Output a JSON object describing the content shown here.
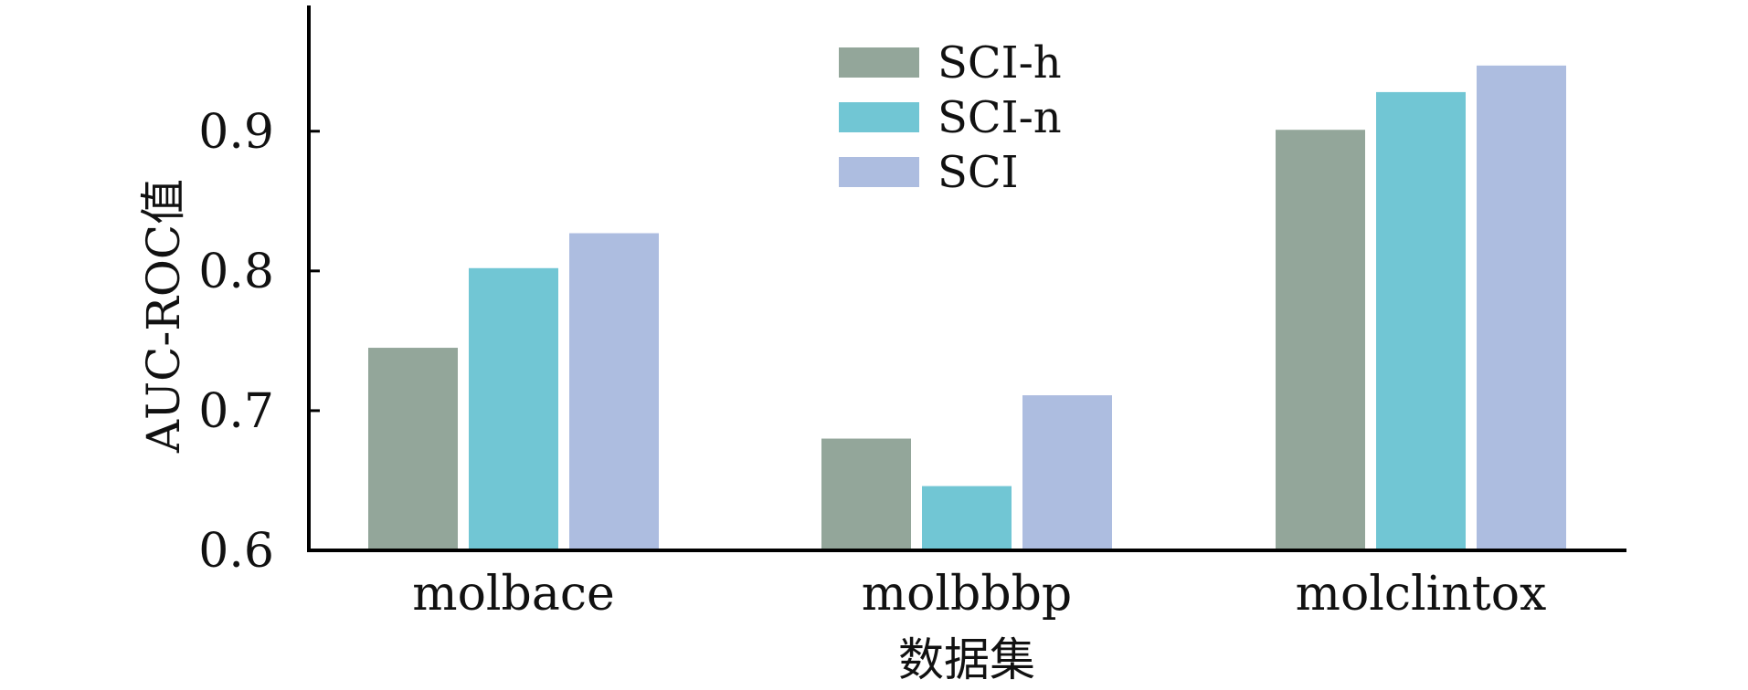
{
  "chart_data": {
    "type": "bar",
    "categories": [
      "molbace",
      "molbbbp",
      "molclintox"
    ],
    "series": [
      {
        "name": "SCI-h",
        "values": [
          0.745,
          0.68,
          0.901
        ],
        "color": "#93a69a"
      },
      {
        "name": "SCI-n",
        "values": [
          0.802,
          0.646,
          0.928
        ],
        "color": "#71c6d4"
      },
      {
        "name": "SCI",
        "values": [
          0.827,
          0.711,
          0.947
        ],
        "color": "#adbde0"
      }
    ],
    "title": "",
    "xlabel": "数据集",
    "ylabel": "AUC-ROC值",
    "ylim": [
      0.6,
      0.99
    ],
    "yticks": [
      0.6,
      0.7,
      0.8,
      0.9
    ],
    "ytick_labels": [
      "0.6",
      "0.7",
      "0.8",
      "0.9"
    ],
    "grid": false,
    "legend_position": "top-center"
  }
}
